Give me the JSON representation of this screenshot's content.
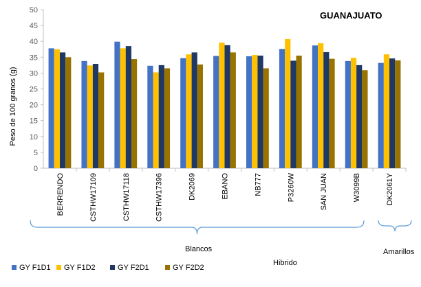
{
  "chart_data": {
    "type": "bar",
    "title": "GUANAJUATO",
    "ylabel": "Peso de 100 granos (g)",
    "ylim": [
      0,
      50
    ],
    "yticks": [
      0,
      5,
      10,
      15,
      20,
      25,
      30,
      35,
      40,
      45,
      50
    ],
    "grid": false,
    "legend_position": "bottom-left",
    "categories": [
      "BERRENDO",
      "CSTHW17109",
      "CSTHW17118",
      "CSTHW17396",
      "DK2069",
      "EBANO",
      "NB777",
      "P3260W",
      "SAN JUAN",
      "W3099B",
      "DK2061Y"
    ],
    "series": [
      {
        "name": "GY F1D1",
        "color": "#4472C4",
        "values": [
          37.8,
          33.8,
          39.9,
          32.3,
          34.7,
          35.4,
          35.3,
          37.6,
          38.7,
          33.8,
          33.2
        ]
      },
      {
        "name": "GY F1D2",
        "color": "#FFC000",
        "values": [
          37.5,
          32.4,
          37.8,
          30.2,
          35.9,
          39.6,
          35.7,
          40.7,
          39.4,
          34.8,
          35.9
        ]
      },
      {
        "name": "GY F2D1",
        "color": "#203864",
        "values": [
          36.5,
          32.9,
          38.5,
          32.5,
          36.5,
          38.8,
          35.5,
          33.9,
          36.6,
          32.5,
          34.6
        ]
      },
      {
        "name": "GY F2D2",
        "color": "#997300",
        "values": [
          35.0,
          30.2,
          34.4,
          31.5,
          32.7,
          36.5,
          31.5,
          35.5,
          34.5,
          30.9,
          34.0
        ]
      }
    ],
    "groups": [
      {
        "label": "Blancos",
        "from": 0,
        "to": 9
      },
      {
        "label": "Amarillos",
        "from": 10,
        "to": 10
      }
    ],
    "annotations": [
      "Hibrido"
    ]
  }
}
